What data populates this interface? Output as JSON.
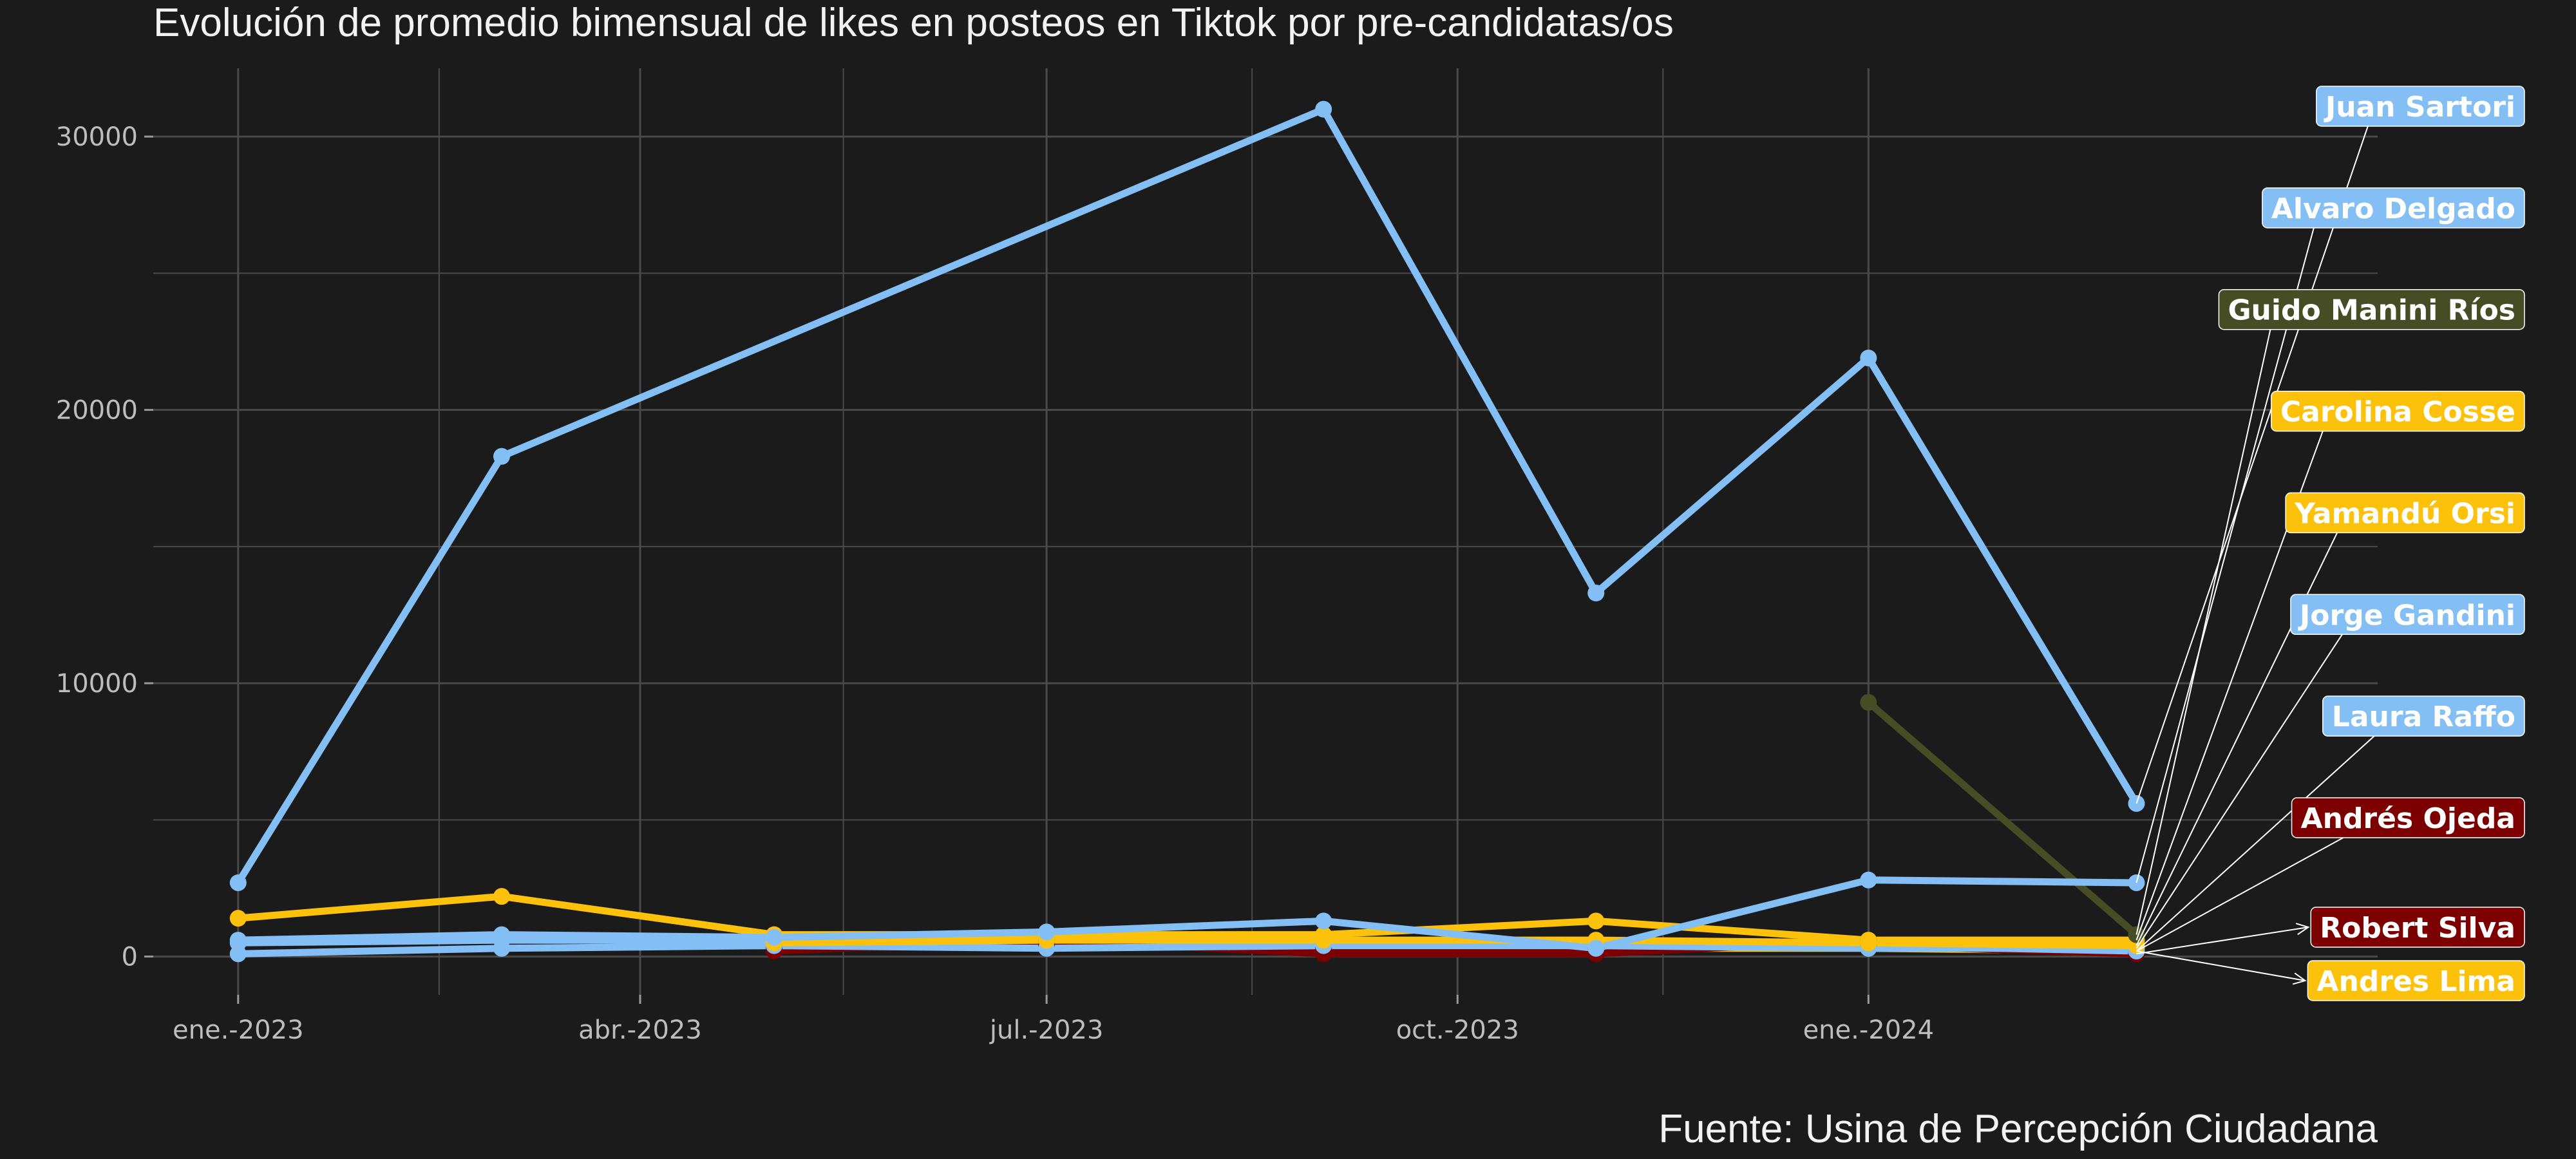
{
  "chart_data": {
    "type": "line",
    "title": "Evolución de promedio bimensual de likes en posteos en Tiktok por pre-candidatas/os",
    "caption": "Fuente: Usina de Percepción Ciudadana",
    "xlabel": "",
    "ylabel": "",
    "x_ticks": [
      "2023-01-01",
      "2023-04-01",
      "2023-07-01",
      "2023-10-01",
      "2024-01-01"
    ],
    "x_tick_labels": [
      "ene.-2023",
      "abr.-2023",
      "jul.-2023",
      "oct.-2023",
      "ene.-2024"
    ],
    "x_range": [
      "2022-12-13",
      "2024-04-24"
    ],
    "y_ticks": [
      0,
      10000,
      20000,
      30000
    ],
    "y_tick_labels": [
      "0",
      "10000",
      "20000",
      "30000"
    ],
    "ylim": [
      -1400,
      32500
    ],
    "grid": true,
    "colors": {
      "background": "#1b1b1b",
      "grid": "#4a4a4a",
      "text": "#f2f2f2",
      "blue": "#83bff5",
      "yellow": "#fcc10a",
      "darkred": "#7d0000",
      "olive": "#464d24"
    },
    "series": [
      {
        "name": "Juan Sartori",
        "color": "#83bff5",
        "label_position": "upper",
        "x": [
          "2023-01-01",
          "2023-03-01",
          "2023-09-01",
          "2023-11-01",
          "2024-01-01",
          "2024-03-01"
        ],
        "y": [
          2700,
          18300,
          31000,
          13300,
          21900,
          5600
        ]
      },
      {
        "name": "Alvaro Delgado",
        "color": "#83bff5",
        "label_position": "upper",
        "x": [
          "2023-01-01",
          "2023-03-01",
          "2023-05-01",
          "2023-07-01",
          "2023-09-01",
          "2023-11-01",
          "2024-01-01",
          "2024-03-01"
        ],
        "y": [
          600,
          800,
          700,
          900,
          1300,
          300,
          2800,
          2700
        ]
      },
      {
        "name": "Guido Manini Ríos",
        "color": "#464d24",
        "label_position": "upper",
        "x": [
          "2024-01-01",
          "2024-03-01"
        ],
        "y": [
          9300,
          800
        ]
      },
      {
        "name": "Carolina Cosse",
        "color": "#fcc10a",
        "label_position": "upper",
        "x": [
          "2023-01-01",
          "2023-03-01",
          "2023-05-01",
          "2023-07-01",
          "2023-09-01",
          "2023-11-01",
          "2024-01-01",
          "2024-03-01"
        ],
        "y": [
          1400,
          2200,
          800,
          800,
          800,
          1300,
          600,
          600
        ]
      },
      {
        "name": "Yamandú Orsi",
        "color": "#fcc10a",
        "label_position": "upper",
        "x": [
          "2023-05-01",
          "2023-07-01",
          "2023-09-01",
          "2023-11-01",
          "2024-01-01",
          "2024-03-01"
        ],
        "y": [
          500,
          600,
          600,
          600,
          500,
          400
        ]
      },
      {
        "name": "Jorge Gandini",
        "color": "#83bff5",
        "label_position": "upper",
        "x": [
          "2023-01-01",
          "2023-03-01",
          "2023-05-01",
          "2023-07-01",
          "2023-09-01",
          "2023-11-01",
          "2024-01-01",
          "2024-03-01"
        ],
        "y": [
          100,
          300,
          400,
          300,
          400,
          400,
          300,
          300
        ]
      },
      {
        "name": "Laura Raffo",
        "color": "#83bff5",
        "label_position": "upper",
        "x": [
          "2023-01-01",
          "2023-03-01",
          "2023-05-01",
          "2023-07-01",
          "2023-09-01",
          "2023-11-01",
          "2024-01-01",
          "2024-03-01"
        ],
        "y": [
          500,
          600,
          600,
          700,
          600,
          500,
          400,
          200
        ]
      },
      {
        "name": "Andrés  Ojeda",
        "color": "#7d0000",
        "label_position": "upper",
        "x": [
          "2023-05-01",
          "2023-07-01",
          "2023-09-01",
          "2023-11-01",
          "2024-01-01",
          "2024-03-01"
        ],
        "y": [
          200,
          600,
          100,
          100,
          600,
          200
        ]
      },
      {
        "name": "Robert Silva",
        "color": "#7d0000",
        "label_position": "lower",
        "x": [
          "2023-05-01",
          "2023-07-01",
          "2023-09-01",
          "2023-11-01",
          "2024-01-01",
          "2024-03-01"
        ],
        "y": [
          300,
          400,
          300,
          300,
          400,
          100
        ]
      },
      {
        "name": "Andres Lima",
        "color": "#fcc10a",
        "label_position": "lower",
        "x": [
          "2023-09-01",
          "2023-11-01",
          "2024-01-01",
          "2024-03-01"
        ],
        "y": [
          400,
          300,
          300,
          200
        ]
      }
    ]
  }
}
